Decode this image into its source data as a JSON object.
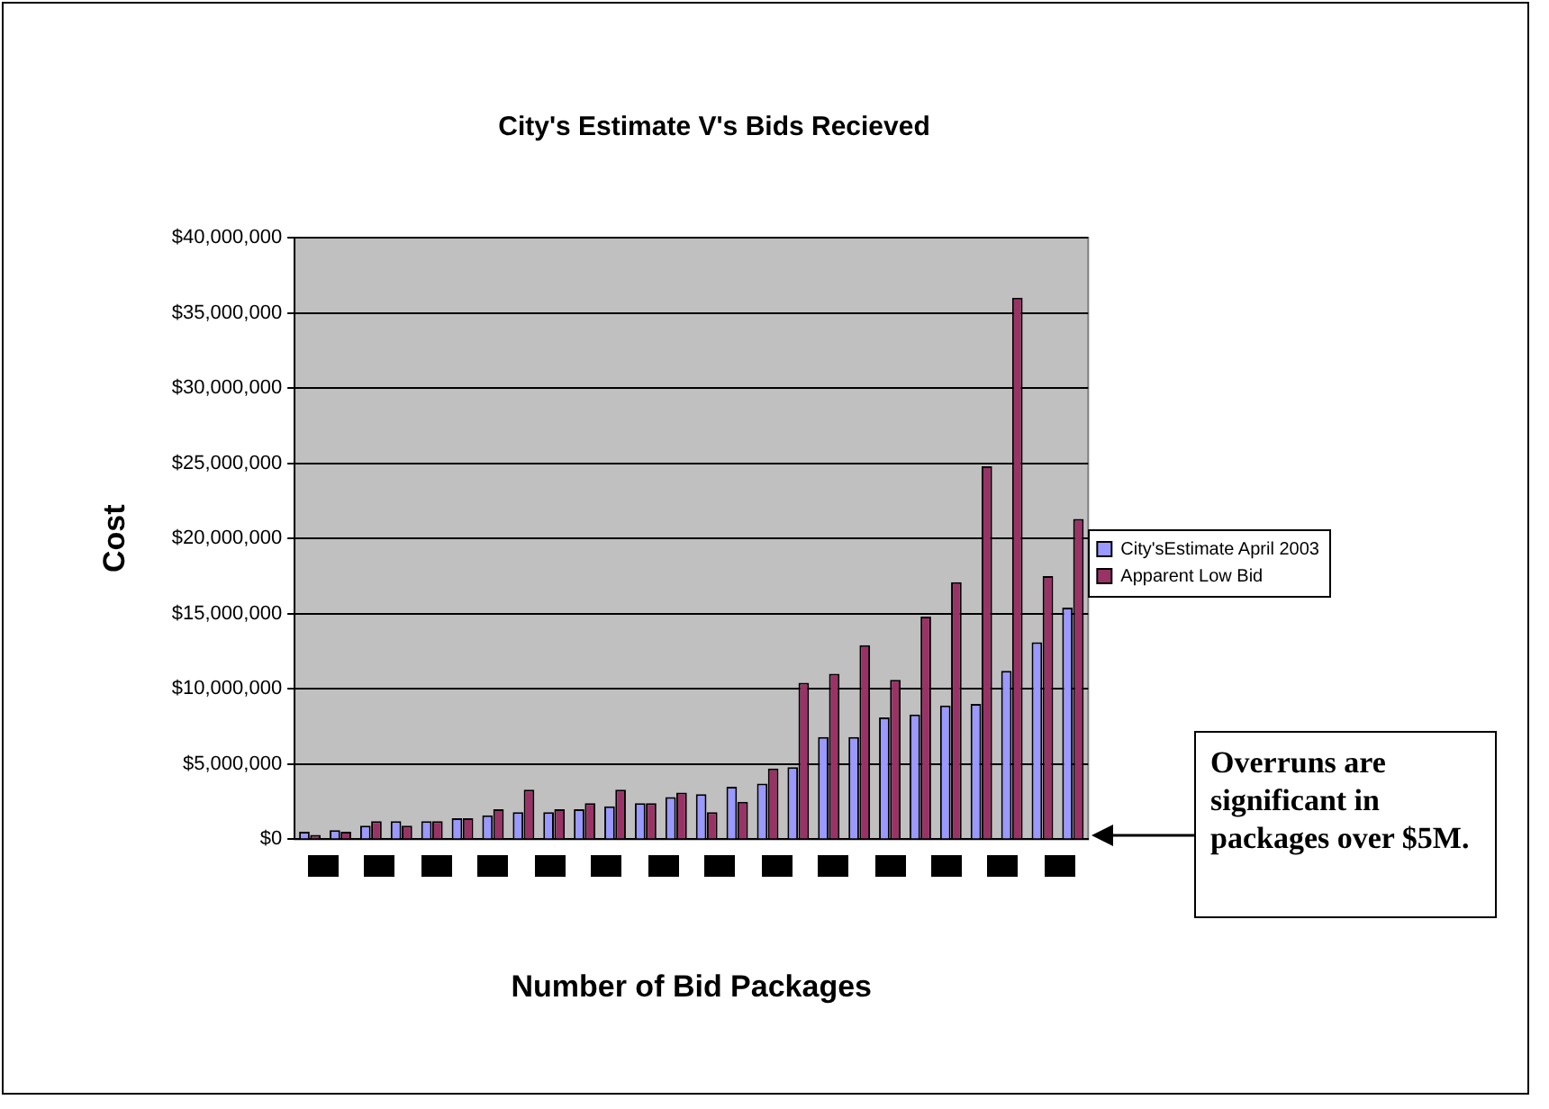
{
  "chart_data": {
    "type": "bar",
    "title": "City's Estimate V's Bids Recieved",
    "xlabel": "Number of Bid Packages",
    "ylabel": "Cost",
    "categories": [
      null,
      null,
      null,
      null,
      null,
      null,
      null,
      null,
      null,
      null,
      null,
      null,
      null,
      null,
      null,
      null,
      null,
      null,
      null,
      null,
      null,
      null,
      null,
      null,
      null,
      null
    ],
    "series": [
      {
        "name": "City'sEstimate April 2003",
        "color": "#9999ff",
        "values": [
          500000,
          600000,
          900000,
          1200000,
          1200000,
          1400000,
          1600000,
          1800000,
          1800000,
          2000000,
          2200000,
          2400000,
          2800000,
          3000000,
          3500000,
          3700000,
          4800000,
          6800000,
          6800000,
          8100000,
          8300000,
          8900000,
          9000000,
          11200000,
          13100000,
          15400000
        ]
      },
      {
        "name": "Apparent Low Bid",
        "color": "#993366",
        "values": [
          300000,
          500000,
          1200000,
          900000,
          1200000,
          1400000,
          2000000,
          3300000,
          2000000,
          2400000,
          3300000,
          2400000,
          3100000,
          1800000,
          2500000,
          4700000,
          10400000,
          11000000,
          12900000,
          10600000,
          14800000,
          17100000,
          24800000,
          36000000,
          17500000,
          21300000
        ]
      }
    ],
    "ylim": [
      0,
      40000000
    ],
    "yticks": [
      {
        "value": 0,
        "label": "$0"
      },
      {
        "value": 5000000,
        "label": "$5,000,000"
      },
      {
        "value": 10000000,
        "label": "$10,000,000"
      },
      {
        "value": 15000000,
        "label": "$15,000,000"
      },
      {
        "value": 20000000,
        "label": "$20,000,000"
      },
      {
        "value": 25000000,
        "label": "$25,000,000"
      },
      {
        "value": 30000000,
        "label": "$30,000,000"
      },
      {
        "value": 35000000,
        "label": "$35,000,000"
      },
      {
        "value": 40000000,
        "label": "$40,000,000"
      }
    ],
    "grid": "y",
    "legend": "right",
    "annotations": [
      "Overruns are significant in packages over $5M."
    ]
  }
}
